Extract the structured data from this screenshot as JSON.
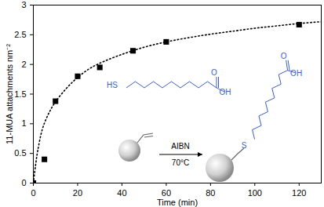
{
  "chart_data": {
    "type": "scatter",
    "x_label": "Time (min)",
    "y_label": "11-MUA attachments nm⁻²",
    "xlim": [
      0,
      130
    ],
    "xticks": [
      0,
      20,
      40,
      60,
      80,
      100,
      120
    ],
    "ylim": [
      0,
      3
    ],
    "yticks": [
      0,
      0.5,
      1,
      1.5,
      2,
      2.5,
      3
    ],
    "grid": false,
    "series": [
      {
        "type": "scatter",
        "marker": "square",
        "color": "#000000",
        "x": [
          0,
          5,
          10,
          20,
          30,
          45,
          60,
          120
        ],
        "values": [
          0,
          0.4,
          1.38,
          1.8,
          1.95,
          2.23,
          2.38,
          2.67
        ]
      },
      {
        "type": "line",
        "line_style": "dotted",
        "color": "#000000",
        "x": [
          0,
          1,
          2,
          4,
          6,
          8,
          10,
          15,
          20,
          25,
          30,
          40,
          50,
          60,
          70,
          80,
          90,
          100,
          110,
          120,
          130
        ],
        "values": [
          0,
          0.3,
          0.55,
          0.9,
          1.1,
          1.25,
          1.37,
          1.6,
          1.78,
          1.92,
          2.02,
          2.17,
          2.29,
          2.38,
          2.45,
          2.51,
          2.56,
          2.61,
          2.65,
          2.69,
          2.72
        ]
      }
    ],
    "annotations": {
      "reagent_thiol": "HS",
      "reagent_carbonyl": "O",
      "reagent_hydroxyl": "OH",
      "above_arrow": "AIBN",
      "below_arrow": "70°C",
      "product_thioether": "S",
      "product_carbonyl": "O",
      "product_hydroxyl": "OH"
    }
  }
}
